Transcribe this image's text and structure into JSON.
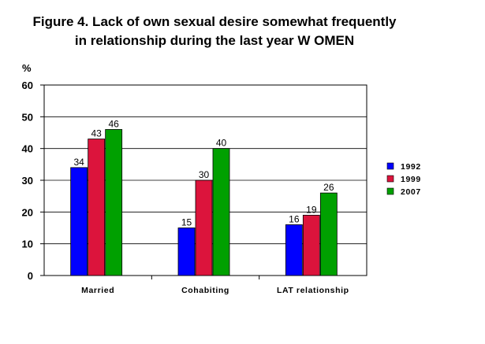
{
  "chart_data": {
    "type": "bar",
    "title": "Figure 4. Lack of own sexual desire somewhat frequently in relationship during the last year W OMEN",
    "title_lines": [
      "Figure 4. Lack of own sexual desire somewhat frequently",
      "in relationship during the last year W OMEN"
    ],
    "ylabel": "%",
    "xlabel": "",
    "ylim": [
      0,
      60
    ],
    "yticks": [
      0,
      10,
      20,
      30,
      40,
      50,
      60
    ],
    "grid": true,
    "legend_position": "right",
    "categories": [
      "Married",
      "Cohabiting",
      "LAT relationship"
    ],
    "series": [
      {
        "name": "1992",
        "color": "#0000FF",
        "values": [
          34,
          15,
          16
        ]
      },
      {
        "name": "1999",
        "color": "#DC143C",
        "values": [
          43,
          30,
          19
        ]
      },
      {
        "name": "2007",
        "color": "#00A000",
        "values": [
          46,
          40,
          26
        ]
      }
    ]
  }
}
